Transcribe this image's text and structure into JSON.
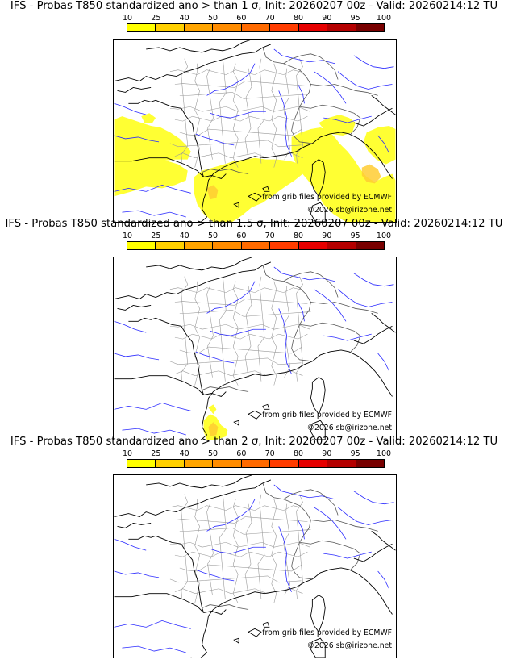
{
  "scale_labels": [
    "10",
    "25",
    "40",
    "50",
    "60",
    "70",
    "80",
    "90",
    "95",
    "100"
  ],
  "scale_colors": [
    "#ffff00",
    "#ffd000",
    "#ffa500",
    "#ff8c00",
    "#ff6a00",
    "#ff3c00",
    "#e60000",
    "#b40000",
    "#780000"
  ],
  "fill_color": "#ffff33",
  "fill_color_dark": "#ffcc33",
  "coast_color": "#000000",
  "river_color": "#2a2aff",
  "border_color": "#9a9a9a",
  "panels": [
    {
      "title": "IFS - Probas T850  standardized ano > than 1 σ, Init: 20260207 00z - Valid: 20260214:12 TU",
      "credit_source": "from grib files provided by ECMWF",
      "credit_copy": "©2026 sb@irizone.net",
      "coverage": "wide"
    },
    {
      "title": "IFS - Probas T850  standardized ano > than 1.5 σ, Init: 20260207 00z - Valid: 20260214:12 TU",
      "credit_source": "from grib files provided by ECMWF",
      "credit_copy": "©2026 sb@irizone.net",
      "coverage": "small"
    },
    {
      "title": "IFS - Probas T850  standardized ano > than 2 σ, Init: 20260207 00z - Valid: 20260214:12 TU",
      "credit_source": "from grib files provided by ECMWF",
      "credit_copy": "©2026 sb@irizone.net",
      "coverage": "none"
    }
  ]
}
